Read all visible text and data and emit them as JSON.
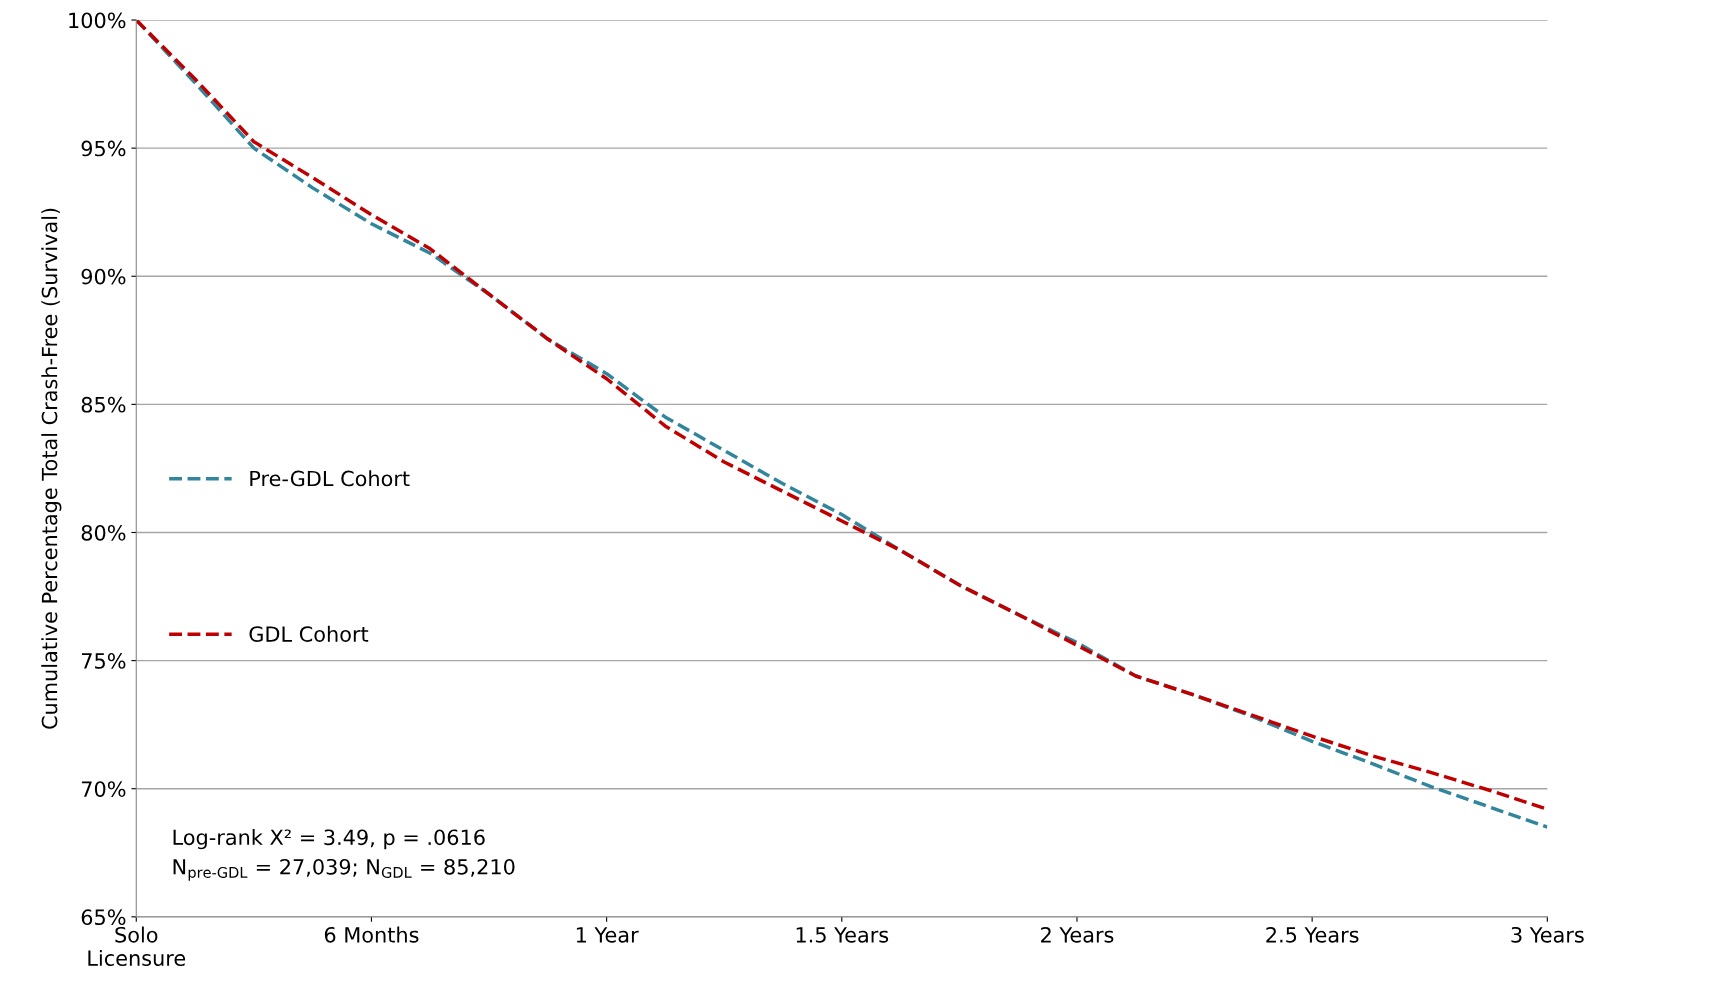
{
  "chart_data": {
    "type": "line",
    "ylabel": "Cumulative Percentage Total Crash-Free (Survival)",
    "categories": [
      "Solo\nLicensure",
      null,
      null,
      null,
      "6 Months",
      null,
      null,
      null,
      "1 Year",
      null,
      null,
      null,
      "1.5 Years",
      null,
      null,
      null,
      "2 Years",
      null,
      null,
      null,
      "2.5 Years",
      null,
      null,
      null,
      "3 Years"
    ],
    "series": [
      {
        "name": "Pre-GDL Cohort",
        "color": "#31859c",
        "values": [
          100,
          97.55,
          95.0,
          93.45,
          92.05,
          90.9,
          89.3,
          87.55,
          86.2,
          84.5,
          83.2,
          81.9,
          80.7,
          79.3,
          77.95,
          76.8,
          75.7,
          74.4,
          73.65,
          72.8,
          71.85,
          71.0,
          70.1,
          69.3,
          68.5
        ]
      },
      {
        "name": "GDL Cohort",
        "color": "#c00000",
        "values": [
          100,
          97.7,
          95.25,
          93.85,
          92.4,
          91.07,
          89.3,
          87.55,
          86.0,
          84.15,
          82.75,
          81.6,
          80.45,
          79.3,
          77.95,
          76.8,
          75.6,
          74.4,
          73.65,
          72.85,
          72.05,
          71.3,
          70.65,
          69.95,
          69.2
        ]
      }
    ],
    "ylim": [
      65,
      100
    ],
    "yticks": [
      {
        "value": 65,
        "label": "65%"
      },
      {
        "value": 70,
        "label": "70%"
      },
      {
        "value": 75,
        "label": "75%"
      },
      {
        "value": 80,
        "label": "80%"
      },
      {
        "value": 85,
        "label": "85%"
      },
      {
        "value": 90,
        "label": "90%"
      },
      {
        "value": 95,
        "label": "95%"
      },
      {
        "value": 100,
        "label": "100%"
      }
    ],
    "grid": "y",
    "legend": "left",
    "line_style": "dashed",
    "marker": "none",
    "annotations": [
      "Log-rank X² = 3.49, p = .0616\nN$_{pre-GDL}$ = 27,039; N$_{GDL}$ = 85,210"
    ]
  }
}
